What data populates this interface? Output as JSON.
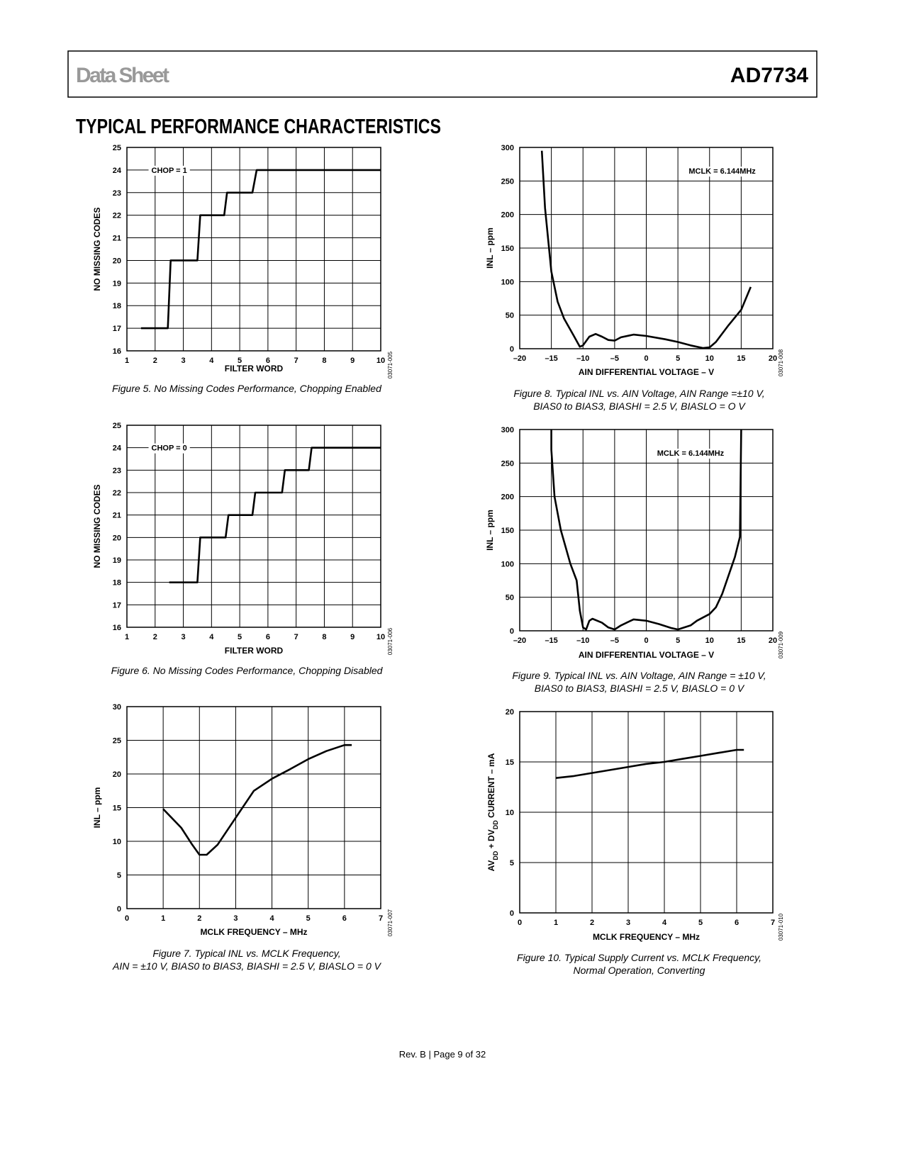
{
  "header": {
    "left": "Data Sheet",
    "right": "AD7734"
  },
  "section_title": "TYPICAL PERFORMANCE CHARACTERISTICS",
  "chart_data": [
    {
      "type": "line",
      "xlabel": "FILTER WORD",
      "ylabel": [
        "NO MISSING CODES"
      ],
      "annotation": "CHOP = 1",
      "figure_id": "03071-005",
      "caption": [
        "Figure 5. No Missing Codes Performance, Chopping Enabled"
      ],
      "xlim": [
        1,
        10
      ],
      "ylim": [
        16,
        25
      ],
      "xticks": [
        1,
        2,
        3,
        4,
        5,
        6,
        7,
        8,
        9,
        10
      ],
      "yticks": [
        16,
        17,
        18,
        19,
        20,
        21,
        22,
        23,
        24,
        25
      ],
      "grid": true,
      "x": [
        1.5,
        2.45,
        2.55,
        3.5,
        3.6,
        4.45,
        4.55,
        5.45,
        5.6,
        10
      ],
      "series": [
        {
          "color": "#000000",
          "values": [
            17,
            17,
            20,
            20,
            22,
            22,
            23,
            23,
            24,
            24
          ]
        }
      ]
    },
    {
      "type": "line",
      "xlabel": "FILTER WORD",
      "ylabel": [
        "NO MISSING CODES"
      ],
      "annotation": "CHOP = 0",
      "figure_id": "03071-006",
      "caption": [
        "Figure 6. No Missing Codes Performance, Chopping Disabled"
      ],
      "xlim": [
        1,
        10
      ],
      "ylim": [
        16,
        25
      ],
      "xticks": [
        1,
        2,
        3,
        4,
        5,
        6,
        7,
        8,
        9,
        10
      ],
      "yticks": [
        16,
        17,
        18,
        19,
        20,
        21,
        22,
        23,
        24,
        25
      ],
      "grid": true,
      "x": [
        2.5,
        3.5,
        3.6,
        4.5,
        4.6,
        5.45,
        5.55,
        6.5,
        6.6,
        7.45,
        7.55,
        10
      ],
      "series": [
        {
          "color": "#000000",
          "values": [
            18,
            18,
            20,
            20,
            21,
            21,
            22,
            22,
            23,
            23,
            24,
            24
          ]
        }
      ]
    },
    {
      "type": "line",
      "xlabel": "MCLK FREQUENCY – MHz",
      "ylabel": [
        "INL – ppm"
      ],
      "figure_id": "03071-007",
      "caption": [
        "Figure 7. Typical INL vs. MCLK Frequency,",
        "AIN = ±10 V, BIAS0 to BIAS3, BIASHI = 2.5 V, BIASLO = 0 V"
      ],
      "xlim": [
        0,
        7
      ],
      "ylim": [
        0,
        30
      ],
      "xticks": [
        0,
        1,
        2,
        3,
        4,
        5,
        6,
        7
      ],
      "yticks": [
        0,
        5,
        10,
        15,
        20,
        25,
        30
      ],
      "grid": true,
      "x": [
        1,
        1.5,
        1.8,
        2,
        2.2,
        2.5,
        3,
        3.5,
        4,
        4.5,
        5,
        5.5,
        6,
        6.2
      ],
      "series": [
        {
          "color": "#000000",
          "values": [
            14.8,
            12,
            9.5,
            8,
            8,
            9.5,
            13.5,
            17.5,
            19.3,
            20.7,
            22.2,
            23.4,
            24.3,
            24.3
          ]
        }
      ]
    },
    {
      "type": "line",
      "xlabel": "AIN DIFFERENTIAL VOLTAGE  – V",
      "ylabel": [
        "INL – ppm"
      ],
      "annotation": "MCLK = 6.144MHz",
      "figure_id": "03071-008",
      "caption": [
        "Figure 8. Typical INL vs. AIN Voltage, AIN Range =±10 V,",
        "BIAS0 to BIAS3, BIASHI = 2.5 V, BIASLO = O V"
      ],
      "xlim": [
        -20,
        20
      ],
      "ylim": [
        0,
        300
      ],
      "xticks": [
        {
          "value": -20,
          "label": "–20"
        },
        {
          "value": -15,
          "label": "–15"
        },
        {
          "value": -10,
          "label": "–10"
        },
        {
          "value": -5,
          "label": "–5"
        },
        0,
        5,
        10,
        15,
        20
      ],
      "yticks": [
        0,
        50,
        100,
        150,
        200,
        250,
        300
      ],
      "grid": true,
      "x": [
        -16.5,
        -16,
        -15,
        -14,
        -13,
        -11.5,
        -10.5,
        -10,
        -9,
        -8,
        -7,
        -6,
        -5,
        -4,
        -2,
        0,
        3,
        5,
        7,
        9,
        10,
        11,
        13,
        15,
        16.5
      ],
      "series": [
        {
          "color": "#000000",
          "values": [
            295,
            210,
            115,
            70,
            45,
            20,
            3,
            5,
            18,
            22,
            18,
            13,
            12,
            17,
            21,
            19,
            14,
            10,
            5,
            1,
            2,
            10,
            35,
            58,
            92
          ]
        }
      ]
    },
    {
      "type": "line",
      "xlabel": "AIN DIFFERENTIAL VOLTAGE  – V",
      "ylabel": [
        "INL – ppm"
      ],
      "annotation": "MCLK = 6.144MHz",
      "figure_id": "03071-009",
      "caption": [
        "Figure 9. Typical INL vs. AIN Voltage, AIN Range = ±10 V,",
        "BIAS0 to BIAS3, BIASHI = 2.5 V, BIASLO = 0 V"
      ],
      "xlim": [
        -20,
        20
      ],
      "ylim": [
        0,
        300
      ],
      "xticks": [
        {
          "value": -20,
          "label": "–20"
        },
        {
          "value": -15,
          "label": "–15"
        },
        {
          "value": -10,
          "label": "–10"
        },
        {
          "value": -5,
          "label": "–5"
        },
        0,
        5,
        10,
        15,
        20
      ],
      "yticks": [
        0,
        50,
        100,
        150,
        200,
        250,
        300
      ],
      "grid": true,
      "x": [
        -15,
        -15,
        -14.5,
        -13.5,
        -12,
        -11,
        -10.5,
        -10,
        -9.5,
        -9,
        -8.5,
        -7,
        -6,
        -5,
        -4,
        -2,
        0,
        2,
        4,
        5,
        7,
        8,
        10,
        11,
        12,
        14,
        14.8,
        15
      ],
      "series": [
        {
          "color": "#000000",
          "values": [
            300,
            270,
            200,
            150,
            100,
            75,
            30,
            5,
            2,
            15,
            18,
            12,
            5,
            2,
            8,
            17,
            15,
            10,
            4,
            2,
            8,
            15,
            25,
            35,
            55,
            110,
            140,
            300
          ]
        }
      ]
    },
    {
      "type": "line",
      "xlabel": "MCLK FREQUENCY – MHz",
      "ylabel": [
        "AV",
        "DD",
        " + DV",
        "DD",
        " CURRENT – mA"
      ],
      "figure_id": "03071-010",
      "caption": [
        "Figure 10. Typical Supply Current vs. MCLK Frequency,",
        "Normal Operation, Converting"
      ],
      "xlim": [
        0,
        7
      ],
      "ylim": [
        0,
        20
      ],
      "xticks": [
        0,
        1,
        2,
        3,
        4,
        5,
        6,
        7
      ],
      "yticks": [
        0,
        5,
        10,
        15,
        20
      ],
      "grid": true,
      "x": [
        1,
        1.5,
        2,
        2.5,
        3,
        3.5,
        4,
        4.5,
        5,
        5.5,
        6,
        6.2
      ],
      "series": [
        {
          "color": "#000000",
          "values": [
            13.4,
            13.6,
            13.9,
            14.2,
            14.5,
            14.8,
            15,
            15.3,
            15.6,
            15.9,
            16.2,
            16.2
          ]
        }
      ]
    }
  ],
  "footer": "Rev. B | Page 9 of 32"
}
